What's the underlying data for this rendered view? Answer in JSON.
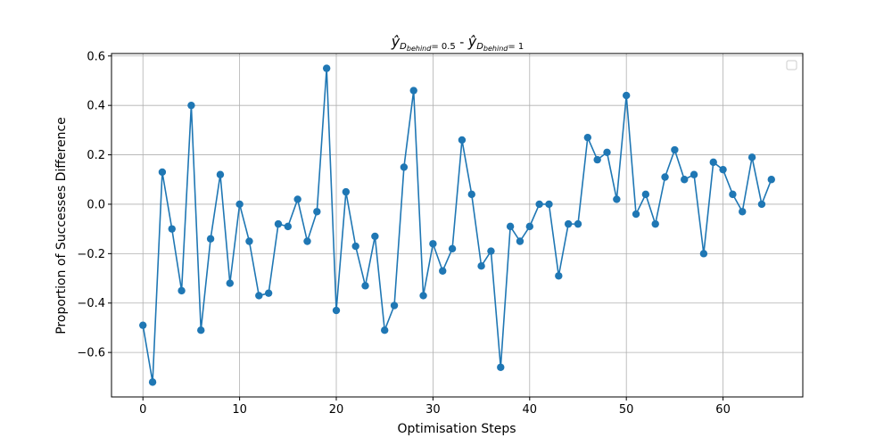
{
  "chart_data": {
    "type": "line",
    "title": "ŷ_{D_behind = 0.5} - ŷ_{D_behind = 1}",
    "title_parts": {
      "left_symbol": "ŷ",
      "left_subscript_D": "D",
      "left_subsubscript": "behind",
      "left_eq": "= 0.5",
      "separator": " - ",
      "right_symbol": "ŷ",
      "right_subscript_D": "D",
      "right_subsubscript": "behind",
      "right_eq": "= 1"
    },
    "xlabel": "Optimisation Steps",
    "ylabel": "Proportion of Successes Difference",
    "xlim": [
      -3.25,
      68.25
    ],
    "ylim": [
      -0.78,
      0.61
    ],
    "xticks": [
      0,
      10,
      20,
      30,
      40,
      50,
      60
    ],
    "yticks": [
      -0.6,
      -0.4,
      -0.2,
      0.0,
      0.2,
      0.4,
      0.6
    ],
    "ytick_labels": [
      "−0.6",
      "−0.4",
      "−0.2",
      "0.0",
      "0.2",
      "0.4",
      "0.6"
    ],
    "grid": true,
    "legend": "top-right",
    "color": "#1f77b4",
    "series": [
      {
        "marker": "circle",
        "x": [
          0,
          1,
          2,
          3,
          4,
          5,
          6,
          7,
          8,
          9,
          10,
          11,
          12,
          13,
          14,
          15,
          16,
          17,
          18,
          19,
          20,
          21,
          22,
          23,
          24,
          25,
          26,
          27,
          28,
          29,
          30,
          31,
          32,
          33,
          34,
          35,
          36,
          37,
          38,
          39,
          40,
          41,
          42,
          43,
          44,
          45,
          46,
          47,
          48,
          49,
          50,
          51,
          52,
          53,
          54,
          55,
          56,
          57,
          58,
          59,
          60,
          61,
          62,
          63,
          64,
          65
        ],
        "values": [
          -0.49,
          -0.72,
          0.13,
          -0.1,
          -0.35,
          0.4,
          -0.51,
          -0.14,
          0.12,
          -0.32,
          0.0,
          -0.15,
          -0.37,
          -0.36,
          -0.08,
          -0.09,
          0.02,
          -0.15,
          -0.03,
          0.55,
          -0.43,
          0.05,
          -0.17,
          -0.33,
          -0.13,
          -0.51,
          -0.41,
          0.15,
          0.46,
          -0.37,
          -0.16,
          -0.27,
          -0.18,
          0.26,
          0.04,
          -0.25,
          -0.19,
          -0.66,
          -0.09,
          -0.15,
          -0.09,
          0.0,
          0.0,
          -0.29,
          -0.08,
          -0.08,
          0.27,
          0.18,
          0.21,
          0.02,
          0.44,
          -0.04,
          0.04,
          -0.08,
          0.11,
          0.22,
          0.1,
          0.12,
          -0.2,
          0.17,
          0.14,
          0.04,
          -0.03,
          0.19,
          0.0,
          0.1
        ]
      }
    ]
  }
}
